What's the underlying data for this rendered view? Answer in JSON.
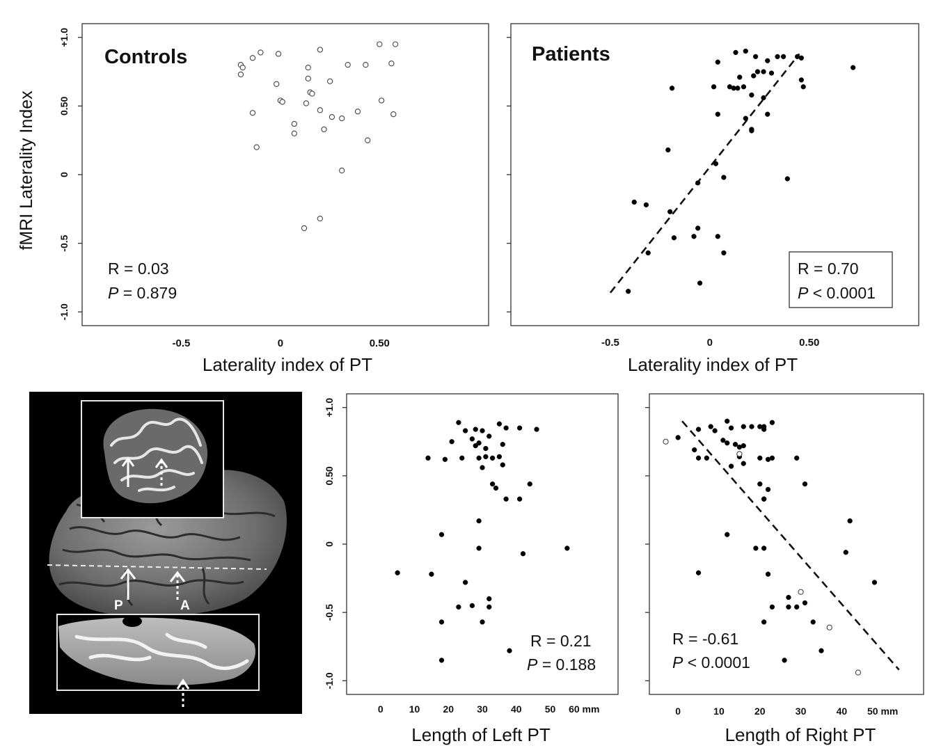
{
  "figure": {
    "y_axis_label": "fMRI Laterality Index"
  },
  "chart_data": [
    {
      "type": "scatter",
      "title": "Controls",
      "xlabel": "Laterality index of PT",
      "ylabel": "fMRI Laterality Index",
      "xlim": [
        -1.0,
        1.05
      ],
      "ylim": [
        -1.1,
        1.1
      ],
      "x_ticks": [
        "-0.5",
        "0",
        "0.50"
      ],
      "x_tick_values": [
        -0.5,
        0,
        0.5
      ],
      "y_ticks": [
        "-1.0",
        "-0.5",
        "0",
        "0.50",
        "+1.0"
      ],
      "y_tick_values": [
        -1.0,
        -0.5,
        0,
        0.5,
        1.0
      ],
      "stats": {
        "r": "R = 0.03",
        "p_label": "P",
        "p_rest": " = 0.879"
      },
      "series": [
        {
          "marker": "open-circle",
          "points": [
            [
              -0.2,
              0.8
            ],
            [
              -0.19,
              0.78
            ],
            [
              -0.2,
              0.73
            ],
            [
              -0.14,
              0.85
            ],
            [
              -0.1,
              0.89
            ],
            [
              -0.01,
              0.88
            ],
            [
              0.2,
              0.91
            ],
            [
              0.5,
              0.95
            ],
            [
              0.58,
              0.95
            ],
            [
              0.14,
              0.78
            ],
            [
              0.14,
              0.7
            ],
            [
              0.34,
              0.8
            ],
            [
              0.43,
              0.8
            ],
            [
              0.56,
              0.81
            ],
            [
              -0.02,
              0.66
            ],
            [
              0.25,
              0.68
            ],
            [
              0.15,
              0.6
            ],
            [
              0.16,
              0.59
            ],
            [
              0.0,
              0.54
            ],
            [
              0.01,
              0.53
            ],
            [
              0.13,
              0.52
            ],
            [
              0.2,
              0.47
            ],
            [
              0.39,
              0.46
            ],
            [
              0.51,
              0.54
            ],
            [
              -0.14,
              0.45
            ],
            [
              0.57,
              0.44
            ],
            [
              0.26,
              0.42
            ],
            [
              0.31,
              0.41
            ],
            [
              0.07,
              0.37
            ],
            [
              0.22,
              0.33
            ],
            [
              0.07,
              0.3
            ],
            [
              -0.12,
              0.2
            ],
            [
              0.44,
              0.25
            ],
            [
              0.31,
              0.03
            ],
            [
              0.2,
              -0.32
            ],
            [
              0.12,
              -0.39
            ]
          ]
        }
      ]
    },
    {
      "type": "scatter",
      "title": "Patients",
      "xlabel": "Laterality index of PT",
      "xlim": [
        -1.0,
        1.05
      ],
      "ylim": [
        -1.1,
        1.1
      ],
      "x_ticks": [
        "-0.5",
        "0",
        "0.50"
      ],
      "x_tick_values": [
        -0.5,
        0,
        0.5
      ],
      "stats": {
        "r": "R = 0.70",
        "p_label": "P",
        "p_rest": " < 0.0001"
      },
      "trend_line": {
        "x": [
          -0.5,
          0.45
        ],
        "y": [
          -0.86,
          0.88
        ]
      },
      "series": [
        {
          "marker": "filled",
          "points": [
            [
              0.13,
              0.89
            ],
            [
              0.18,
              0.9
            ],
            [
              0.23,
              0.86
            ],
            [
              0.29,
              0.83
            ],
            [
              0.34,
              0.86
            ],
            [
              0.37,
              0.86
            ],
            [
              0.44,
              0.86
            ],
            [
              0.46,
              0.85
            ],
            [
              0.72,
              0.78
            ],
            [
              0.04,
              0.82
            ],
            [
              0.24,
              0.75
            ],
            [
              0.27,
              0.75
            ],
            [
              0.31,
              0.74
            ],
            [
              0.22,
              0.72
            ],
            [
              0.15,
              0.71
            ],
            [
              0.46,
              0.69
            ],
            [
              -0.19,
              0.63
            ],
            [
              0.02,
              0.64
            ],
            [
              0.1,
              0.64
            ],
            [
              0.12,
              0.63
            ],
            [
              0.14,
              0.63
            ],
            [
              0.17,
              0.64
            ],
            [
              0.47,
              0.64
            ],
            [
              0.21,
              0.58
            ],
            [
              0.27,
              0.56
            ],
            [
              0.04,
              0.44
            ],
            [
              0.29,
              0.44
            ],
            [
              0.18,
              0.41
            ],
            [
              0.21,
              0.33
            ],
            [
              0.21,
              0.32
            ],
            [
              -0.21,
              0.18
            ],
            [
              0.03,
              0.08
            ],
            [
              0.07,
              -0.02
            ],
            [
              -0.06,
              -0.06
            ],
            [
              0.39,
              -0.03
            ],
            [
              -0.38,
              -0.2
            ],
            [
              -0.32,
              -0.22
            ],
            [
              -0.2,
              -0.27
            ],
            [
              -0.06,
              -0.39
            ],
            [
              -0.08,
              -0.45
            ],
            [
              -0.18,
              -0.46
            ],
            [
              0.04,
              -0.45
            ],
            [
              -0.31,
              -0.57
            ],
            [
              0.07,
              -0.57
            ],
            [
              -0.05,
              -0.79
            ],
            [
              -0.41,
              -0.85
            ]
          ]
        }
      ]
    },
    {
      "type": "scatter",
      "xlabel": "Length of Left PT",
      "xlim": [
        -10,
        70
      ],
      "ylim": [
        -1.1,
        1.1
      ],
      "x_ticks": [
        "0",
        "10",
        "20",
        "30",
        "40",
        "50",
        "60 mm"
      ],
      "x_tick_values": [
        0,
        10,
        20,
        30,
        40,
        50,
        60
      ],
      "y_ticks": [
        "-1.0",
        "-0.5",
        "0",
        "0.50",
        "+1.0"
      ],
      "y_tick_values": [
        -1.0,
        -0.5,
        0,
        0.5,
        1.0
      ],
      "stats": {
        "r": "R = 0.21",
        "p_label": "P",
        "p_rest": " = 0.188"
      },
      "series": [
        {
          "marker": "filled",
          "points": [
            [
              23,
              0.89
            ],
            [
              25,
              0.83
            ],
            [
              28,
              0.84
            ],
            [
              30,
              0.83
            ],
            [
              35,
              0.88
            ],
            [
              37,
              0.85
            ],
            [
              41,
              0.85
            ],
            [
              46,
              0.84
            ],
            [
              21,
              0.75
            ],
            [
              27,
              0.77
            ],
            [
              29,
              0.74
            ],
            [
              32,
              0.79
            ],
            [
              28,
              0.72
            ],
            [
              31,
              0.7
            ],
            [
              36,
              0.73
            ],
            [
              24,
              0.63
            ],
            [
              29,
              0.63
            ],
            [
              31,
              0.64
            ],
            [
              33,
              0.63
            ],
            [
              35,
              0.64
            ],
            [
              36,
              0.58
            ],
            [
              30,
              0.56
            ],
            [
              14,
              0.63
            ],
            [
              19,
              0.62
            ],
            [
              33,
              0.44
            ],
            [
              34,
              0.41
            ],
            [
              44,
              0.44
            ],
            [
              37,
              0.33
            ],
            [
              41,
              0.33
            ],
            [
              29,
              0.17
            ],
            [
              18,
              0.07
            ],
            [
              29,
              -0.03
            ],
            [
              42,
              -0.07
            ],
            [
              55,
              -0.03
            ],
            [
              5,
              -0.21
            ],
            [
              15,
              -0.22
            ],
            [
              25,
              -0.28
            ],
            [
              32,
              -0.4
            ],
            [
              23,
              -0.46
            ],
            [
              27,
              -0.45
            ],
            [
              32,
              -0.46
            ],
            [
              18,
              -0.57
            ],
            [
              30,
              -0.57
            ],
            [
              38,
              -0.78
            ],
            [
              18,
              -0.85
            ]
          ]
        }
      ]
    },
    {
      "type": "scatter",
      "xlabel": "Length of Right PT",
      "xlim": [
        -7,
        60
      ],
      "ylim": [
        -1.1,
        1.1
      ],
      "x_ticks": [
        "0",
        "10",
        "20",
        "30",
        "40",
        "50 mm"
      ],
      "x_tick_values": [
        0,
        10,
        20,
        30,
        40,
        50
      ],
      "stats": {
        "r": "R = -0.61",
        "p_label": "P",
        "p_rest": " < 0.0001"
      },
      "trend_line": {
        "x": [
          1,
          54
        ],
        "y": [
          0.9,
          -0.92
        ]
      },
      "series": [
        {
          "marker": "filled",
          "points": [
            [
              0,
              0.78
            ],
            [
              5,
              0.84
            ],
            [
              8,
              0.86
            ],
            [
              9,
              0.83
            ],
            [
              12,
              0.9
            ],
            [
              13,
              0.85
            ],
            [
              16,
              0.86
            ],
            [
              18,
              0.86
            ],
            [
              20,
              0.86
            ],
            [
              21,
              0.86
            ],
            [
              23,
              0.89
            ],
            [
              21,
              0.84
            ],
            [
              11,
              0.76
            ],
            [
              12,
              0.74
            ],
            [
              14,
              0.73
            ],
            [
              16,
              0.72
            ],
            [
              4,
              0.69
            ],
            [
              15,
              0.71
            ],
            [
              5,
              0.63
            ],
            [
              7,
              0.63
            ],
            [
              15,
              0.64
            ],
            [
              16,
              0.59
            ],
            [
              20,
              0.63
            ],
            [
              22,
              0.62
            ],
            [
              23,
              0.63
            ],
            [
              29,
              0.63
            ],
            [
              13,
              0.57
            ],
            [
              20,
              0.44
            ],
            [
              22,
              0.4
            ],
            [
              21,
              0.33
            ],
            [
              21,
              0.33
            ],
            [
              31,
              0.44
            ],
            [
              42,
              0.17
            ],
            [
              12,
              0.07
            ],
            [
              19,
              -0.03
            ],
            [
              21,
              -0.03
            ],
            [
              41,
              -0.06
            ],
            [
              5,
              -0.21
            ],
            [
              22,
              -0.22
            ],
            [
              48,
              -0.28
            ],
            [
              27,
              -0.39
            ],
            [
              31,
              -0.43
            ],
            [
              23,
              -0.46
            ],
            [
              27,
              -0.46
            ],
            [
              29,
              -0.46
            ],
            [
              21,
              -0.57
            ],
            [
              33,
              -0.57
            ],
            [
              35,
              -0.78
            ],
            [
              26,
              -0.85
            ]
          ]
        },
        {
          "marker": "open-circle",
          "points": [
            [
              -3,
              0.75
            ],
            [
              15,
              0.66
            ],
            [
              30,
              -0.35
            ],
            [
              37,
              -0.61
            ],
            [
              44,
              -0.94
            ]
          ]
        }
      ]
    }
  ],
  "brain_panel": {
    "labels": {
      "posterior": "P",
      "anterior": "A"
    }
  }
}
